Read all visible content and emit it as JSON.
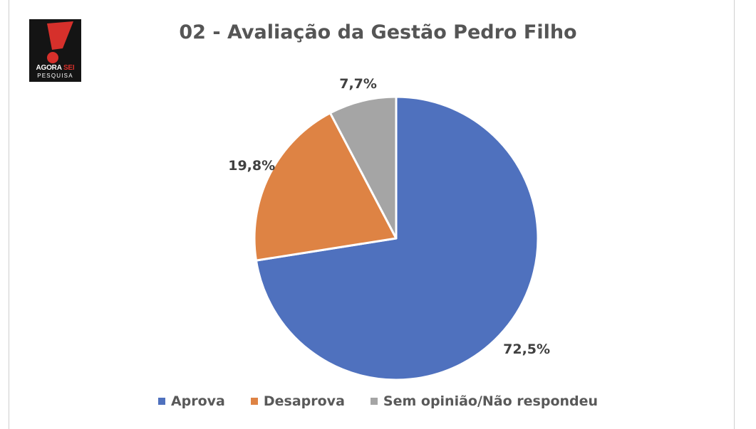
{
  "logo": {
    "text_main": "AGORA",
    "text_highlight": "SEI",
    "text_sub": "PESQUISA"
  },
  "title": "02 - Avaliação da Gestão Pedro Filho",
  "colors": {
    "logo_bg": "#141414",
    "logo_accent": "#d6302b",
    "text": "#595959"
  },
  "chart_data": {
    "type": "pie",
    "title": "02 - Avaliação da Gestão Pedro Filho",
    "slices": [
      {
        "label": "Aprova",
        "value": 72.5,
        "value_label": "72,5%",
        "color": "#4f71be"
      },
      {
        "label": "Desaprova",
        "value": 19.8,
        "value_label": "19,8%",
        "color": "#de8344"
      },
      {
        "label": "Sem opinião/Não respondeu",
        "value": 7.7,
        "value_label": "7,7%",
        "color": "#a5a5a5"
      }
    ],
    "legend_position": "bottom",
    "start_angle": "12 o'clock, clockwise"
  }
}
